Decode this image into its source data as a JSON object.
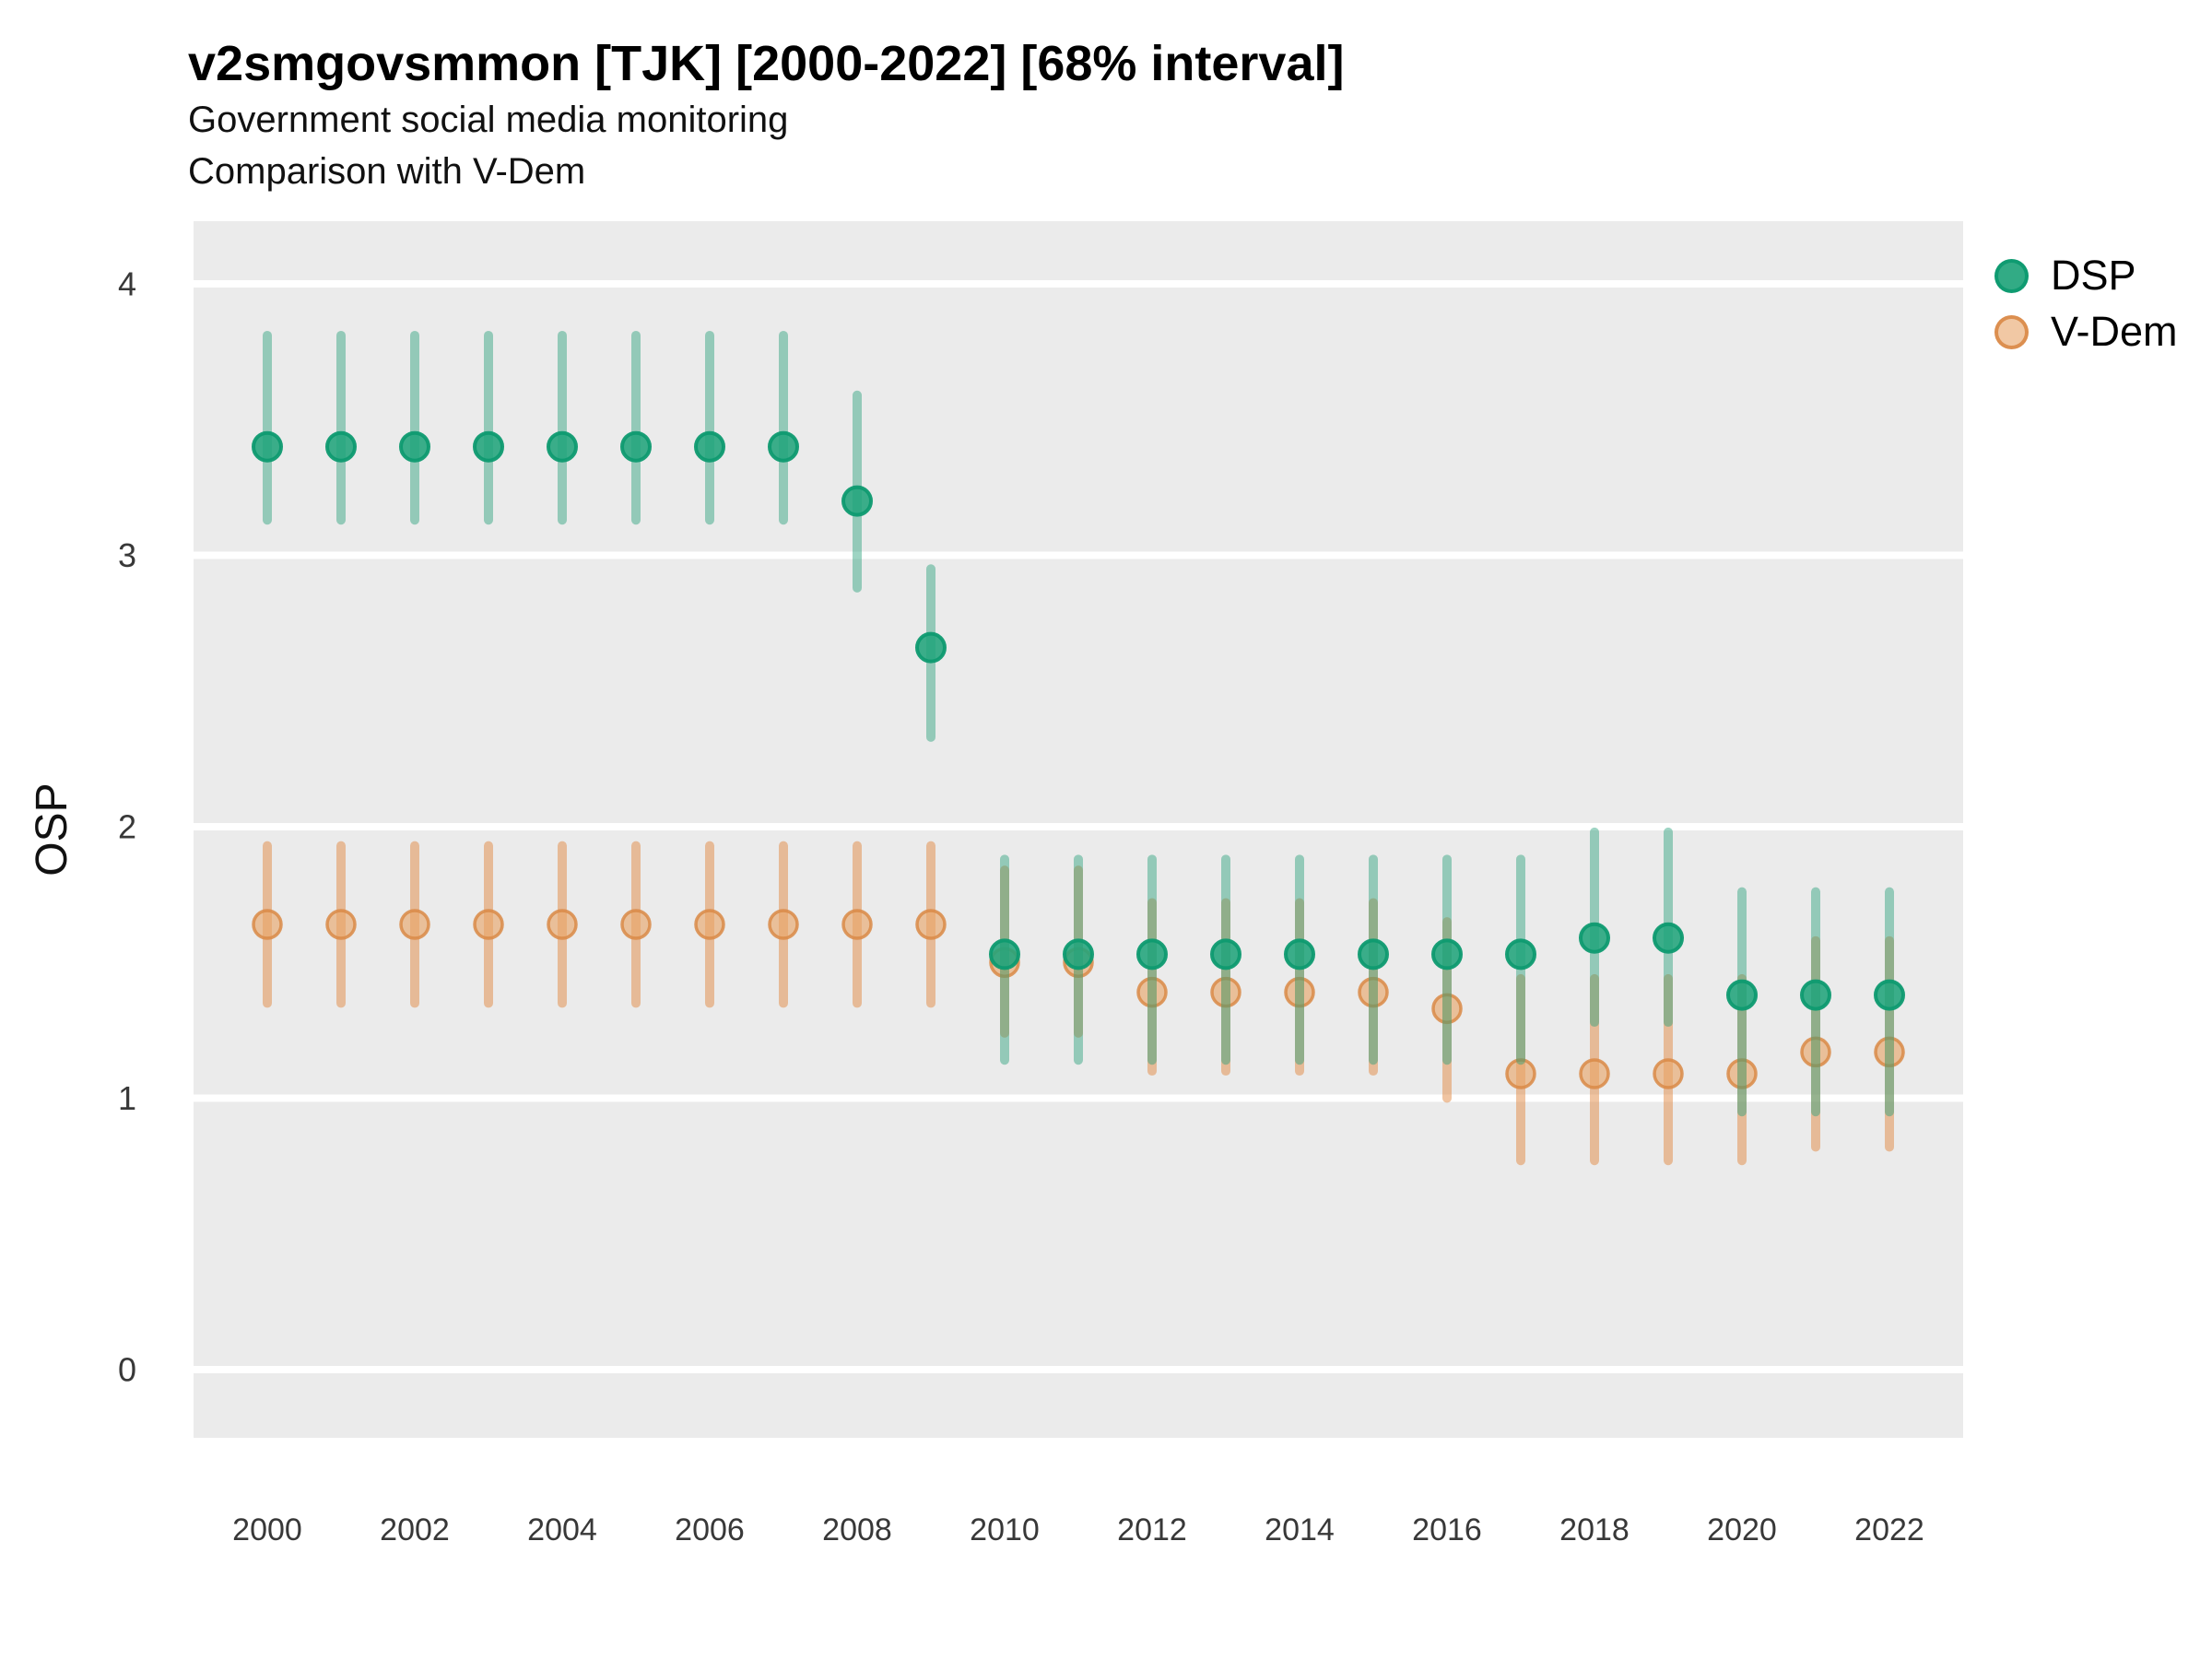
{
  "chart_data": {
    "type": "pointrange",
    "title": "v2smgovsmmon [TJK] [2000-2022] [68% interval]",
    "subtitle1": "Government social media monitoring",
    "subtitle2": "Comparison with V-Dem",
    "ylabel": "OSP",
    "interval": "68%",
    "panel_bg": "#ebebeb",
    "gridline_color": "#ffffff",
    "tick_label_color": "#383838",
    "x": [
      2000,
      2001,
      2002,
      2003,
      2004,
      2005,
      2006,
      2007,
      2008,
      2009,
      2010,
      2011,
      2012,
      2013,
      2014,
      2015,
      2016,
      2017,
      2018,
      2019,
      2020,
      2021,
      2022
    ],
    "x_tick_labels": [
      "2000",
      "2002",
      "2004",
      "2006",
      "2008",
      "2010",
      "2012",
      "2014",
      "2016",
      "2018",
      "2020",
      "2022"
    ],
    "y_ticks": [
      "4",
      "3",
      "2",
      "1",
      "0"
    ],
    "y_tick_values": [
      4,
      3,
      2,
      1,
      0
    ],
    "ylim": [
      -0.25,
      4.23
    ],
    "legend_position": "top-right",
    "series": [
      {
        "name": "DSP",
        "point_fill": "#21a47b",
        "point_stroke": "#0e9a70",
        "point_fill_opacity": 0.88,
        "point_stroke_opacity": 0.95,
        "point_radius": 15,
        "point_stroke_width": 4,
        "line_color": "rgba(41,160,122,0.45)",
        "legend_dot_fill": "rgba(33,164,123,0.92)",
        "legend_dot_stroke": "rgba(14,154,112,0.95)",
        "values": [
          3.4,
          3.4,
          3.4,
          3.4,
          3.4,
          3.4,
          3.4,
          3.4,
          3.2,
          2.66,
          1.53,
          1.53,
          1.53,
          1.53,
          1.53,
          1.53,
          1.53,
          1.53,
          1.59,
          1.59,
          1.38,
          1.38,
          1.38
        ],
        "lo": [
          3.13,
          3.13,
          3.13,
          3.13,
          3.13,
          3.13,
          3.13,
          3.13,
          2.88,
          2.33,
          1.14,
          1.14,
          1.14,
          1.14,
          1.14,
          1.14,
          1.14,
          1.14,
          1.28,
          1.28,
          0.95,
          0.95,
          0.95
        ],
        "hi": [
          3.81,
          3.81,
          3.81,
          3.81,
          3.81,
          3.81,
          3.81,
          3.81,
          3.59,
          2.95,
          1.88,
          1.88,
          1.88,
          1.88,
          1.88,
          1.88,
          1.88,
          1.88,
          1.98,
          1.98,
          1.76,
          1.76,
          1.76
        ]
      },
      {
        "name": "V-Dem",
        "point_fill": "#e8a468",
        "point_stroke": "#d98a47",
        "point_fill_opacity": 0.62,
        "point_stroke_opacity": 0.85,
        "point_radius": 15,
        "point_stroke_width": 3.5,
        "line_color": "rgba(226,141,75,0.52)",
        "legend_dot_fill": "rgba(232,164,104,0.6)",
        "legend_dot_stroke": "rgba(217,138,71,0.9)",
        "values": [
          1.64,
          1.64,
          1.64,
          1.64,
          1.64,
          1.64,
          1.64,
          1.64,
          1.64,
          1.64,
          1.5,
          1.5,
          1.39,
          1.39,
          1.39,
          1.39,
          1.33,
          1.09,
          1.09,
          1.09,
          1.09,
          1.17,
          1.17
        ],
        "lo": [
          1.35,
          1.35,
          1.35,
          1.35,
          1.35,
          1.35,
          1.35,
          1.35,
          1.35,
          1.35,
          1.24,
          1.24,
          1.1,
          1.1,
          1.1,
          1.1,
          1.0,
          0.77,
          0.77,
          0.77,
          0.77,
          0.82,
          0.82
        ],
        "hi": [
          1.93,
          1.93,
          1.93,
          1.93,
          1.93,
          1.93,
          1.93,
          1.93,
          1.93,
          1.93,
          1.84,
          1.84,
          1.72,
          1.72,
          1.72,
          1.72,
          1.65,
          1.44,
          1.44,
          1.44,
          1.44,
          1.58,
          1.58
        ]
      }
    ]
  }
}
